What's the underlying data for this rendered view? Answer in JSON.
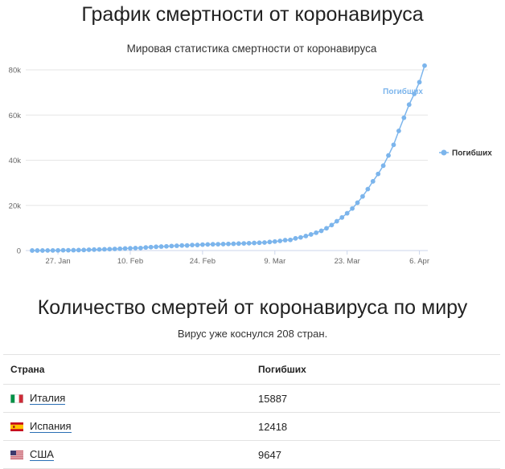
{
  "page": {
    "title": "График смертности от коронавируса"
  },
  "chart_data": {
    "type": "line",
    "title": "Мировая статистика смертности от коронавируса",
    "series": [
      {
        "name": "Погибших",
        "color": "#7cb5ec",
        "start": "2020-01-22",
        "end": "2020-04-07",
        "values": [
          17,
          18,
          26,
          42,
          56,
          82,
          131,
          133,
          171,
          213,
          259,
          362,
          426,
          492,
          564,
          634,
          719,
          806,
          906,
          1013,
          1113,
          1118,
          1371,
          1523,
          1666,
          1770,
          1868,
          2007,
          2122,
          2247,
          2251,
          2458,
          2469,
          2629,
          2708,
          2770,
          2814,
          2872,
          2941,
          2996,
          3085,
          3160,
          3254,
          3348,
          3460,
          3558,
          3803,
          3996,
          4262,
          4615,
          4720,
          5404,
          5819,
          6440,
          7126,
          7905,
          8733,
          9867,
          11299,
          12973,
          14651,
          16505,
          18625,
          21181,
          23970,
          27198,
          30652,
          33925,
          37582,
          42107,
          46809,
          52983,
          58787,
          64606,
          69374,
          74565,
          81865
        ]
      }
    ],
    "x_tick_labels": [
      "27. Jan",
      "10. Feb",
      "24. Feb",
      "9. Mar",
      "23. Mar",
      "6. Apr"
    ],
    "x_tick_dates": [
      "2020-01-27",
      "2020-02-10",
      "2020-02-24",
      "2020-03-09",
      "2020-03-23",
      "2020-04-06"
    ],
    "y_tick_labels": [
      "0",
      "20k",
      "40k",
      "60k",
      "80k"
    ],
    "y_tick_values": [
      0,
      20000,
      40000,
      60000,
      80000
    ],
    "ylim": [
      0,
      80000
    ],
    "grid": true,
    "legend": {
      "position": "right",
      "label": "Погибших"
    },
    "end_label": "Погибших"
  },
  "stats": {
    "title": "Количество смертей от коронавируса по миру",
    "subtitle": "Вирус уже коснулся 208 стран.",
    "columns": {
      "country": "Страна",
      "deaths": "Погибших"
    },
    "rows": [
      {
        "country": "Италия",
        "deaths": "15887",
        "flag": "italy-flag-icon"
      },
      {
        "country": "Испания",
        "deaths": "12418",
        "flag": "spain-flag-icon"
      },
      {
        "country": "США",
        "deaths": "9647",
        "flag": "usa-flag-icon"
      }
    ]
  }
}
